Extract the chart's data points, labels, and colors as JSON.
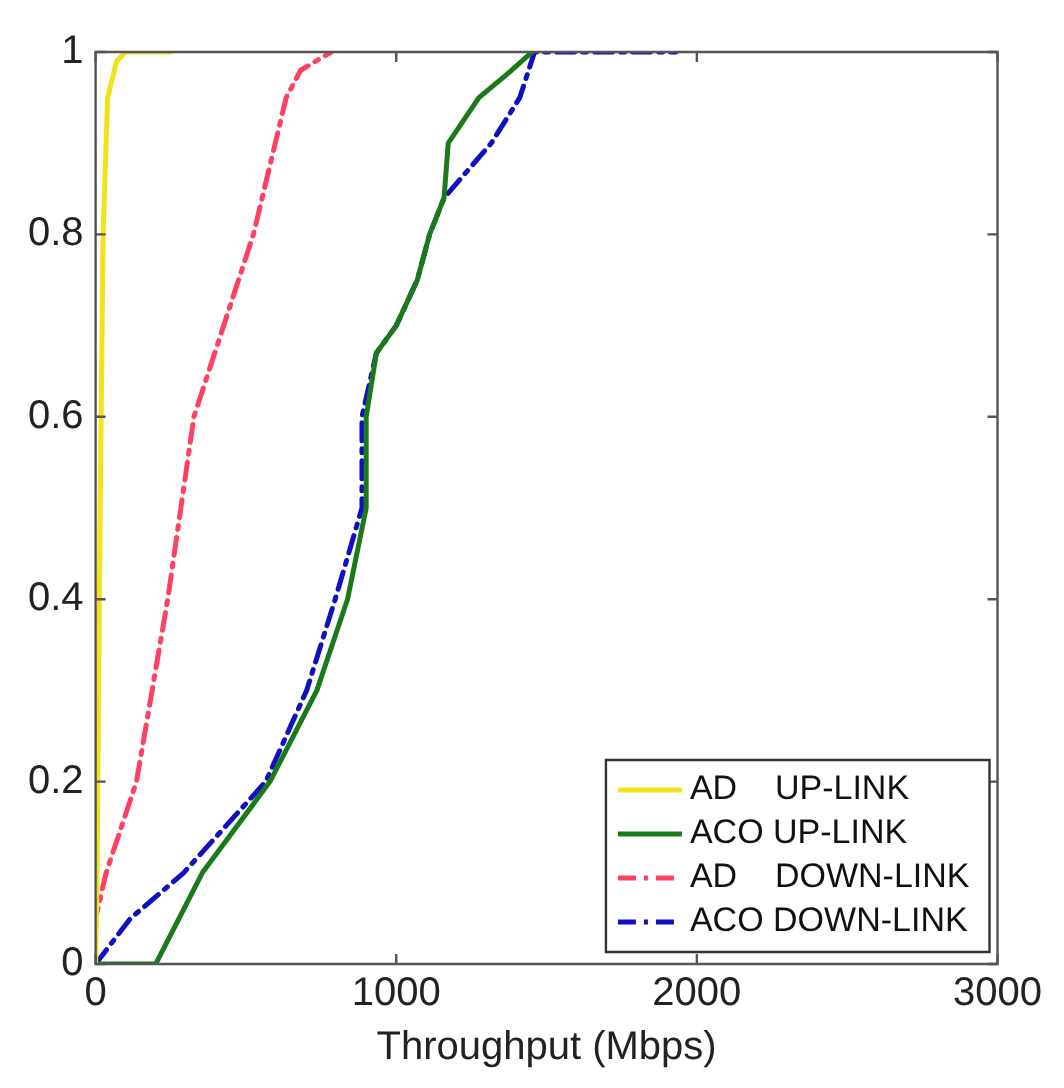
{
  "chart_data": {
    "type": "line",
    "xlabel": "Throughput (Mbps)",
    "xlim": [
      0,
      3000
    ],
    "xticks": [
      0,
      1000,
      2000,
      3000
    ],
    "ylim": [
      0,
      1
    ],
    "yticks": [
      0,
      0.2,
      0.4,
      0.6,
      0.8,
      1
    ],
    "grid": false,
    "legend": "bottom right",
    "marker": "none",
    "series": [
      {
        "name": "AD    UP-LINK",
        "color": "#f2e21a",
        "line_style": "solid",
        "x": [
          0,
          5,
          15,
          25,
          40,
          70,
          100,
          250
        ],
        "values": [
          0,
          0.1,
          0.5,
          0.8,
          0.95,
          0.99,
          1,
          1
        ]
      },
      {
        "name": "ACO UP-LINK",
        "color": "#1a7a1a",
        "line_style": "solid",
        "x": [
          0,
          200,
          355,
          580,
          736,
          838,
          900,
          900,
          934,
          1000,
          1070,
          1111,
          1159,
          1173,
          1275,
          1384,
          1452
        ],
        "values": [
          0,
          0,
          0.1,
          0.2,
          0.3,
          0.4,
          0.5,
          0.6,
          0.67,
          0.7,
          0.75,
          0.8,
          0.84,
          0.9,
          0.95,
          0.98,
          1
        ]
      },
      {
        "name": "AD    DOWN-LINK",
        "color": "#ff4060",
        "line_style": "dashed",
        "x": [
          0,
          0,
          35,
          136,
          240,
          327,
          525,
          634,
          682,
          784
        ],
        "values": [
          0,
          0.05,
          0.1,
          0.2,
          0.4,
          0.6,
          0.8,
          0.95,
          0.98,
          1
        ]
      },
      {
        "name": "ACO DOWN-LINK",
        "color": "#1010c0",
        "line_style": "dashed",
        "x": [
          0,
          116,
          293,
          566,
          702,
          797,
          886,
          886,
          934,
          1000,
          1070,
          1111,
          1159,
          1316,
          1411,
          1460,
          1930
        ],
        "values": [
          0,
          0.05,
          0.1,
          0.2,
          0.3,
          0.4,
          0.5,
          0.6,
          0.67,
          0.7,
          0.75,
          0.8,
          0.84,
          0.9,
          0.95,
          1,
          1
        ]
      }
    ]
  }
}
